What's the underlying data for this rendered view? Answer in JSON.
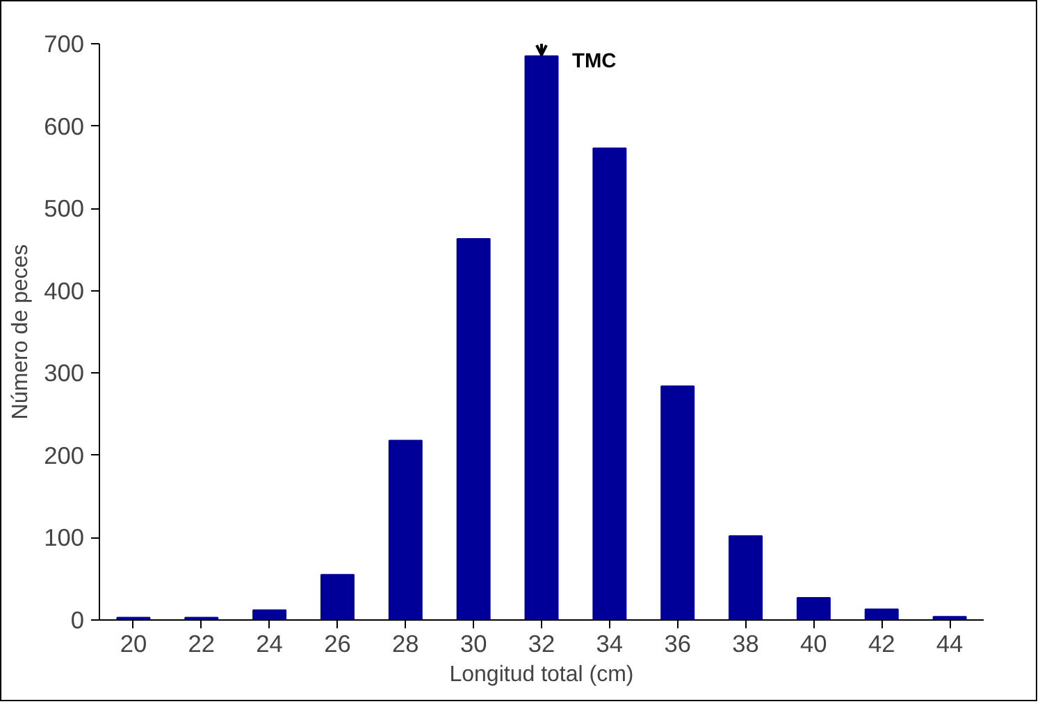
{
  "chart_data": {
    "type": "bar",
    "xlabel": "Longitud total (cm)",
    "ylabel": "Número de peces",
    "categories": [
      "20",
      "22",
      "24",
      "26",
      "28",
      "30",
      "32",
      "34",
      "36",
      "38",
      "40",
      "42",
      "44"
    ],
    "values": [
      3,
      3,
      12,
      55,
      218,
      463,
      685,
      573,
      284,
      102,
      27,
      13,
      4
    ],
    "color": "#000099",
    "ylim": [
      0,
      700
    ],
    "yticks": [
      0,
      100,
      200,
      300,
      400,
      500,
      600,
      700
    ],
    "grid": false,
    "annotations": [
      {
        "text": "TMC",
        "x": "32",
        "y": 685
      }
    ]
  }
}
